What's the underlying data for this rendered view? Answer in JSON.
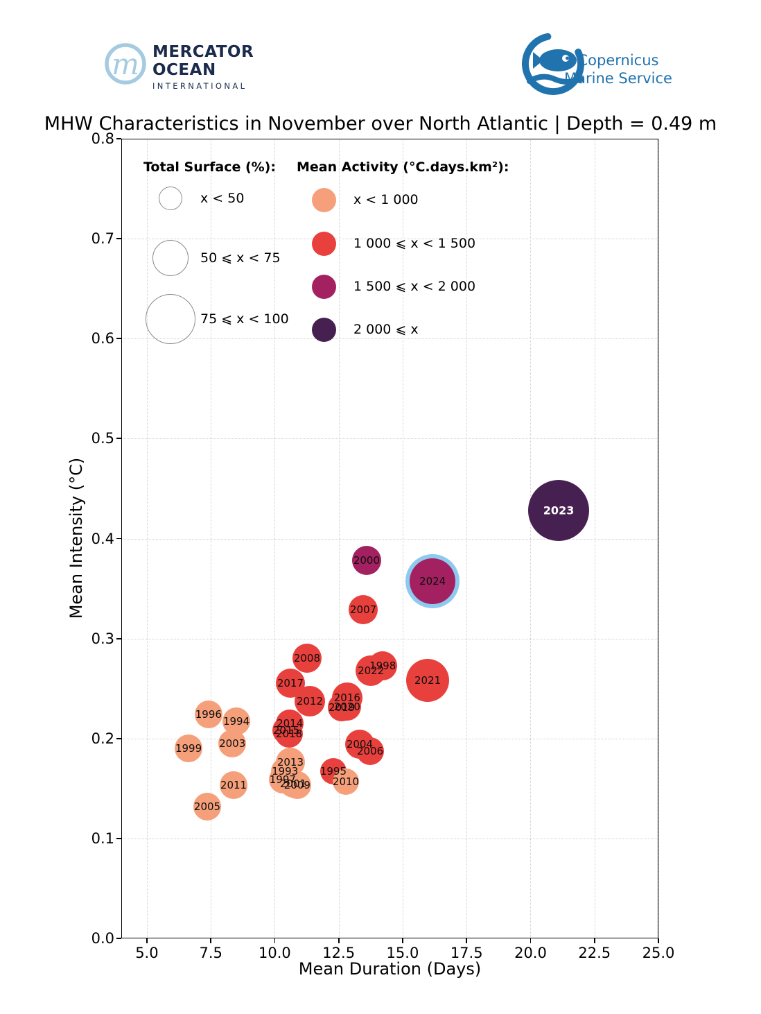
{
  "header": {
    "mercator": {
      "line1": "MERCATOR",
      "line2": "OCEAN",
      "line3": "INTERNATIONAL"
    },
    "copernicus": {
      "line1": "Copernicus",
      "line2": "Marine Service"
    }
  },
  "title": "MHW Characteristics in November over North Atlantic | Depth = 0.49 m",
  "chart_data": {
    "type": "scatter",
    "title": "MHW Characteristics in November over North Atlantic | Depth = 0.49 m",
    "xlabel": "Mean Duration (Days)",
    "ylabel": "Mean Intensity (°C)",
    "xlim": [
      4,
      25
    ],
    "ylim": [
      0.0,
      0.8
    ],
    "x_tick_values": [
      5.0,
      7.5,
      10.0,
      12.5,
      15.0,
      17.5,
      20.0,
      22.5,
      25.0
    ],
    "x_tick_labels": [
      "5.0",
      "7.5",
      "10.0",
      "12.5",
      "15.0",
      "17.5",
      "20.0",
      "22.5",
      "25.0"
    ],
    "y_tick_values": [
      0.0,
      0.1,
      0.2,
      0.3,
      0.4,
      0.5,
      0.6,
      0.7,
      0.8
    ],
    "y_tick_labels": [
      "0.0",
      "0.1",
      "0.2",
      "0.3",
      "0.4",
      "0.5",
      "0.6",
      "0.7",
      "0.8"
    ],
    "grid": "dotted",
    "legend": {
      "size_legend": {
        "title": "Total Surface (%):",
        "items": [
          {
            "label": "x < 50",
            "radius_px": 17
          },
          {
            "label": "50 ⩽ x < 75",
            "radius_px": 26
          },
          {
            "label": "75 ⩽ x < 100",
            "radius_px": 36
          }
        ]
      },
      "color_legend": {
        "title": "Mean Activity (°C.days.km²):",
        "items": [
          {
            "label": "x < 1 000",
            "key": "lt_1000",
            "color": "#F5A07B"
          },
          {
            "label": "1 000 ⩽ x < 1 500",
            "key": "1000_1500",
            "color": "#E8403C"
          },
          {
            "label": "1 500 ⩽ x < 2 000",
            "key": "1500_2000",
            "color": "#A32161"
          },
          {
            "label": "2 000 ⩽ x",
            "key": "gte_2000",
            "color": "#472052"
          }
        ]
      }
    },
    "palette": {
      "lt_1000": "#F5A07B",
      "1000_1500": "#E8403C",
      "1500_2000": "#A32161",
      "gte_2000": "#472052",
      "highlight_ring": "#8EC9F0"
    },
    "points": [
      {
        "year": "1993",
        "duration": 10.4,
        "intensity": 0.167,
        "radius_px": 20,
        "activity_class": "lt_1000",
        "surface_class": "x < 50"
      },
      {
        "year": "1994",
        "duration": 8.5,
        "intensity": 0.217,
        "radius_px": 20,
        "activity_class": "lt_1000",
        "surface_class": "x < 50"
      },
      {
        "year": "1995",
        "duration": 12.29,
        "intensity": 0.167,
        "radius_px": 19,
        "activity_class": "1000_1500",
        "surface_class": "x < 50"
      },
      {
        "year": "1996",
        "duration": 7.41,
        "intensity": 0.224,
        "radius_px": 20,
        "activity_class": "lt_1000",
        "surface_class": "x < 50"
      },
      {
        "year": "1997",
        "duration": 10.31,
        "intensity": 0.159,
        "radius_px": 20,
        "activity_class": "lt_1000",
        "surface_class": "x < 50"
      },
      {
        "year": "1998",
        "duration": 14.22,
        "intensity": 0.273,
        "radius_px": 21,
        "activity_class": "1000_1500",
        "surface_class": "x < 50"
      },
      {
        "year": "1999",
        "duration": 6.63,
        "intensity": 0.19,
        "radius_px": 20,
        "activity_class": "lt_1000",
        "surface_class": "x < 50"
      },
      {
        "year": "2000",
        "duration": 13.59,
        "intensity": 0.378,
        "radius_px": 21,
        "activity_class": "1500_2000",
        "surface_class": "x < 50"
      },
      {
        "year": "2001",
        "duration": 10.72,
        "intensity": 0.155,
        "radius_px": 20,
        "activity_class": "lt_1000",
        "surface_class": "x < 50"
      },
      {
        "year": "2003",
        "duration": 8.34,
        "intensity": 0.195,
        "radius_px": 20,
        "activity_class": "lt_1000",
        "surface_class": "x < 50"
      },
      {
        "year": "2004",
        "duration": 13.32,
        "intensity": 0.194,
        "radius_px": 21,
        "activity_class": "1000_1500",
        "surface_class": "x < 50"
      },
      {
        "year": "2005",
        "duration": 7.36,
        "intensity": 0.132,
        "radius_px": 20,
        "activity_class": "lt_1000",
        "surface_class": "x < 50"
      },
      {
        "year": "2006",
        "duration": 13.73,
        "intensity": 0.187,
        "radius_px": 20,
        "activity_class": "1000_1500",
        "surface_class": "x < 50"
      },
      {
        "year": "2007",
        "duration": 13.46,
        "intensity": 0.329,
        "radius_px": 21,
        "activity_class": "1000_1500",
        "surface_class": "x < 50"
      },
      {
        "year": "2008",
        "duration": 11.26,
        "intensity": 0.28,
        "radius_px": 21,
        "activity_class": "1000_1500",
        "surface_class": "x < 50"
      },
      {
        "year": "2009",
        "duration": 10.88,
        "intensity": 0.153,
        "radius_px": 20,
        "activity_class": "lt_1000",
        "surface_class": "x < 50"
      },
      {
        "year": "2010",
        "duration": 12.78,
        "intensity": 0.157,
        "radius_px": 19,
        "activity_class": "lt_1000",
        "surface_class": "x < 50"
      },
      {
        "year": "2011",
        "duration": 8.39,
        "intensity": 0.153,
        "radius_px": 20,
        "activity_class": "lt_1000",
        "surface_class": "x < 50"
      },
      {
        "year": "2012",
        "duration": 11.37,
        "intensity": 0.237,
        "radius_px": 22,
        "activity_class": "1000_1500",
        "surface_class": "x < 50"
      },
      {
        "year": "2013",
        "duration": 10.61,
        "intensity": 0.176,
        "radius_px": 21,
        "activity_class": "lt_1000",
        "surface_class": "x < 50"
      },
      {
        "year": "2014",
        "duration": 10.59,
        "intensity": 0.215,
        "radius_px": 20,
        "activity_class": "1000_1500",
        "surface_class": "x < 50"
      },
      {
        "year": "2015",
        "duration": 10.45,
        "intensity": 0.208,
        "radius_px": 20,
        "activity_class": "1000_1500",
        "surface_class": "x < 50"
      },
      {
        "year": "2016",
        "duration": 12.83,
        "intensity": 0.241,
        "radius_px": 22,
        "activity_class": "1000_1500",
        "surface_class": "x < 50"
      },
      {
        "year": "2017",
        "duration": 10.61,
        "intensity": 0.255,
        "radius_px": 21,
        "activity_class": "1000_1500",
        "surface_class": "x < 50"
      },
      {
        "year": "2018",
        "duration": 10.56,
        "intensity": 0.205,
        "radius_px": 20,
        "activity_class": "1000_1500",
        "surface_class": "x < 50"
      },
      {
        "year": "2019",
        "duration": 12.62,
        "intensity": 0.231,
        "radius_px": 20,
        "activity_class": "1000_1500",
        "surface_class": "x < 50"
      },
      {
        "year": "2020",
        "duration": 12.83,
        "intensity": 0.232,
        "radius_px": 20,
        "activity_class": "1000_1500",
        "surface_class": "x < 50"
      },
      {
        "year": "2021",
        "duration": 15.98,
        "intensity": 0.258,
        "radius_px": 31,
        "activity_class": "1000_1500",
        "surface_class": "50 ⩽ x < 75"
      },
      {
        "year": "2022",
        "duration": 13.76,
        "intensity": 0.268,
        "radius_px": 22,
        "activity_class": "1000_1500",
        "surface_class": "x < 50"
      },
      {
        "year": "2023",
        "duration": 21.1,
        "intensity": 0.428,
        "radius_px": 44,
        "activity_class": "gte_2000",
        "surface_class": "75 ⩽ x < 100",
        "label_style": "white-bold"
      },
      {
        "year": "2024",
        "duration": 16.17,
        "intensity": 0.357,
        "radius_px": 33,
        "activity_class": "1500_2000",
        "surface_class": "50 ⩽ x < 75",
        "highlight_ring": true
      }
    ]
  }
}
